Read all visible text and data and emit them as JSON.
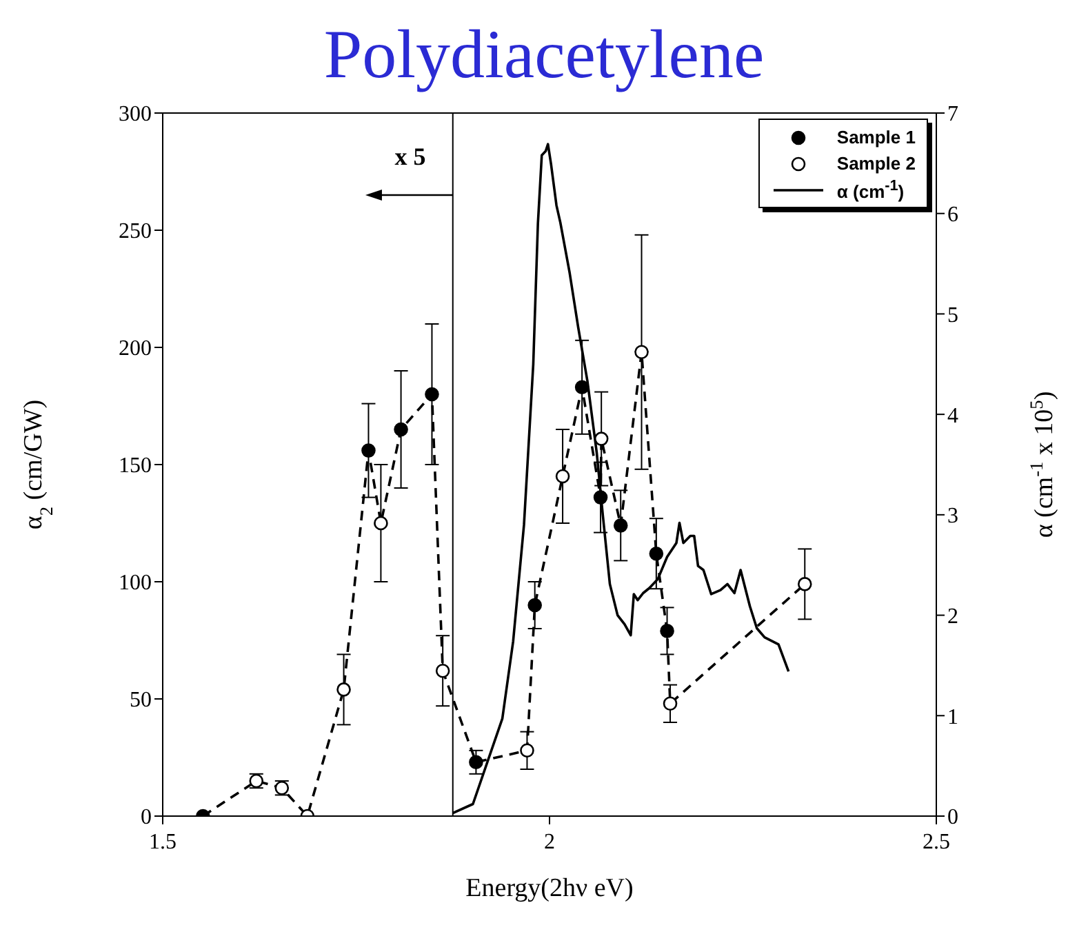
{
  "chart_data": {
    "type": "scatter",
    "title": "Polydiacetylene",
    "xlabel": "Energy(2hν eV)",
    "ylabel": "α$_{2}$ (cm/GW)",
    "y2label": "α (cm$^{-1}$ x 10$^{5}$)",
    "annotations": [
      "x 5"
    ],
    "xlim": [
      1.5,
      2.5
    ],
    "xticks": [
      1.5,
      2,
      2.5
    ],
    "ylim": [
      0,
      300
    ],
    "yticks": [
      0,
      50,
      100,
      150,
      200,
      250,
      300
    ],
    "y2lim": [
      0,
      7
    ],
    "y2ticks": [
      0,
      1,
      2,
      3,
      4,
      5,
      6,
      7
    ],
    "grid": false,
    "legend": "top right",
    "marker": "circle",
    "ref_lines": [
      {
        "axis": "x",
        "value": 1.875,
        "color": "#000000"
      }
    ],
    "series": [
      {
        "type": "line",
        "color": "#000000",
        "line_style": "dashed",
        "marker": "none",
        "x": [
          1.552,
          1.621,
          1.654,
          1.687,
          1.734,
          1.766,
          1.782,
          1.808,
          1.848,
          1.862,
          1.905,
          1.971,
          1.981,
          2.017,
          2.042,
          2.066,
          2.067,
          2.092,
          2.119,
          2.138,
          2.152,
          2.156,
          2.33
        ],
        "values": [
          0,
          15,
          12,
          0,
          54,
          156,
          125,
          165,
          180,
          62,
          23,
          28,
          90,
          145,
          183,
          136,
          161,
          124,
          198,
          112,
          79,
          48,
          99
        ]
      },
      {
        "name": "Sample 1",
        "color": "#000000",
        "x": [
          1.552,
          1.766,
          1.808,
          1.848,
          1.905,
          1.981,
          2.042,
          2.066,
          2.092,
          2.138,
          2.152
        ],
        "values": [
          0,
          156,
          165,
          180,
          23,
          90,
          183,
          136,
          124,
          112,
          79
        ],
        "errors": [
          null,
          20,
          25,
          30,
          5,
          10,
          20,
          15,
          15,
          15,
          10
        ]
      },
      {
        "name": "Sample 2",
        "color": "#ffffff",
        "x": [
          1.621,
          1.654,
          1.687,
          1.734,
          1.782,
          1.862,
          1.971,
          2.017,
          2.067,
          2.119,
          2.156,
          2.33
        ],
        "values": [
          15,
          12,
          0,
          54,
          125,
          62,
          28,
          145,
          161,
          198,
          48,
          99
        ],
        "errors": [
          3,
          3,
          null,
          15,
          25,
          15,
          8,
          20,
          20,
          50,
          8,
          15
        ]
      },
      {
        "name": "α (cm$^{-1}$)",
        "type": "line",
        "axis": "y2",
        "color": "#000000",
        "line_style": "solid",
        "marker": "none",
        "x": [
          1.875,
          1.901,
          1.939,
          1.953,
          1.967,
          1.979,
          1.985,
          1.99,
          1.995,
          1.998,
          2.002,
          2.009,
          2.014,
          2.026,
          2.037,
          2.049,
          2.061,
          2.069,
          2.078,
          2.088,
          2.097,
          2.105,
          2.109,
          2.114,
          2.121,
          2.129,
          2.14,
          2.152,
          2.164,
          2.168,
          2.173,
          2.182,
          2.187,
          2.192,
          2.199,
          2.209,
          2.221,
          2.23,
          2.239,
          2.247,
          2.259,
          2.268,
          2.278,
          2.296,
          2.309
        ],
        "values": [
          0.03,
          0.12,
          0.97,
          1.74,
          2.9,
          4.5,
          5.9,
          6.58,
          6.62,
          6.69,
          6.49,
          6.08,
          5.91,
          5.41,
          4.87,
          4.33,
          3.62,
          2.99,
          2.31,
          2.0,
          1.91,
          1.8,
          2.21,
          2.15,
          2.22,
          2.27,
          2.36,
          2.58,
          2.72,
          2.92,
          2.72,
          2.79,
          2.79,
          2.49,
          2.45,
          2.21,
          2.25,
          2.31,
          2.22,
          2.45,
          2.09,
          1.87,
          1.78,
          1.71,
          1.44
        ]
      }
    ]
  }
}
